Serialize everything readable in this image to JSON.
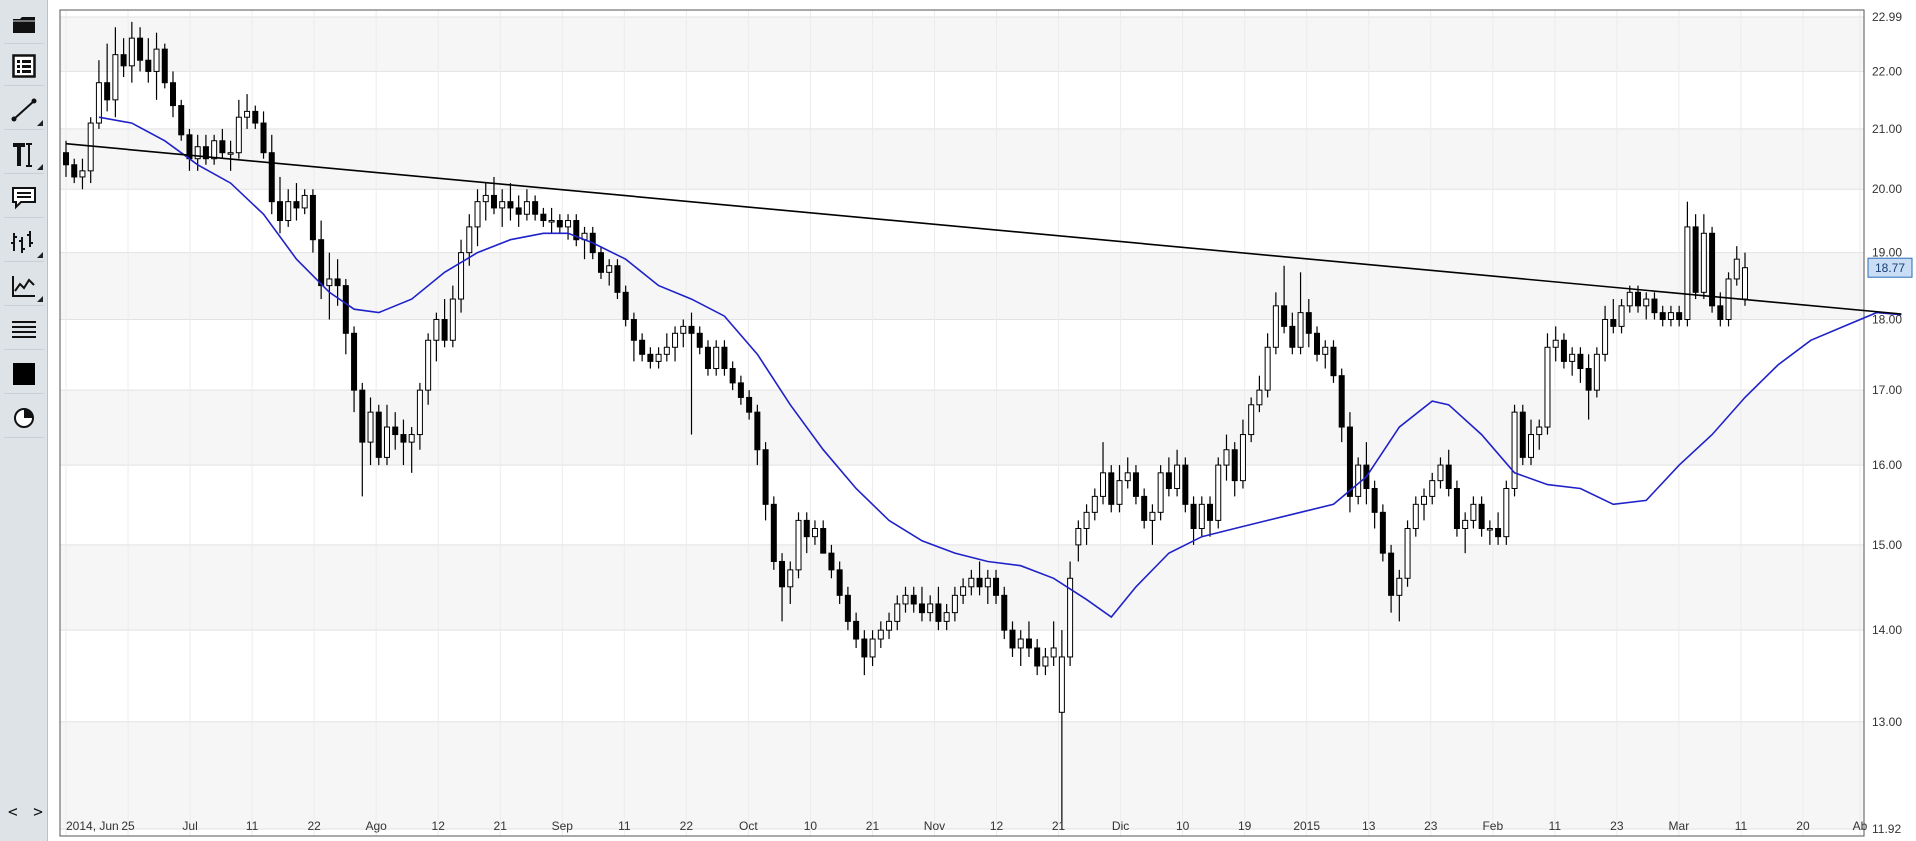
{
  "toolbar": {
    "tools": [
      {
        "name": "open-folder-icon"
      },
      {
        "name": "data-table-icon"
      },
      {
        "name": "trendline-icon"
      },
      {
        "name": "text-tool-icon"
      },
      {
        "name": "comment-icon"
      },
      {
        "name": "indicator-icon"
      },
      {
        "name": "chart-type-icon"
      },
      {
        "name": "lines-icon"
      },
      {
        "name": "color-icon"
      },
      {
        "name": "pie-icon"
      }
    ],
    "nav_label": "< >"
  },
  "chart_data": {
    "type": "candlestick",
    "y_scale": "log",
    "ylim": [
      11.92,
      22.99
    ],
    "ytick_labels": [
      "22.99",
      "22.00",
      "21.00",
      "20.00",
      "19.00",
      "18.00",
      "17.00",
      "16.00",
      "15.00",
      "14.00",
      "13.00",
      "11.92"
    ],
    "xtick_labels": [
      "2014, Jun",
      "25",
      "Jul",
      "11",
      "22",
      "Ago",
      "12",
      "21",
      "Sep",
      "11",
      "22",
      "Oct",
      "10",
      "21",
      "Nov",
      "12",
      "21",
      "Dic",
      "10",
      "19",
      "2015",
      "13",
      "23",
      "Feb",
      "11",
      "23",
      "Mar",
      "11",
      "20",
      "Ab"
    ],
    "last_price": "18.77",
    "colors": {
      "up_body": "#ffffff",
      "down_body": "#000000",
      "moving_average": "#1f22c8",
      "trendline": "#000000",
      "last_price_label_bg": "#c9ddf5"
    },
    "grid": "horizontal bands",
    "ohlc": [
      [
        20.6,
        20.8,
        20.2,
        20.4
      ],
      [
        20.4,
        20.5,
        20.1,
        20.2
      ],
      [
        20.2,
        20.5,
        20.0,
        20.3
      ],
      [
        20.3,
        21.2,
        20.1,
        21.1
      ],
      [
        21.1,
        22.2,
        21.0,
        21.8
      ],
      [
        21.8,
        22.5,
        21.3,
        21.5
      ],
      [
        21.5,
        22.8,
        21.2,
        22.3
      ],
      [
        22.3,
        22.6,
        21.9,
        22.1
      ],
      [
        22.1,
        22.9,
        21.8,
        22.6
      ],
      [
        22.6,
        22.8,
        22.0,
        22.2
      ],
      [
        22.2,
        22.6,
        21.8,
        22.0
      ],
      [
        22.0,
        22.7,
        21.5,
        22.4
      ],
      [
        22.4,
        22.5,
        21.7,
        21.8
      ],
      [
        21.8,
        22.0,
        21.2,
        21.4
      ],
      [
        21.4,
        21.5,
        20.8,
        20.9
      ],
      [
        20.9,
        21.0,
        20.3,
        20.5
      ],
      [
        20.5,
        20.9,
        20.3,
        20.7
      ],
      [
        20.7,
        20.9,
        20.4,
        20.5
      ],
      [
        20.5,
        20.9,
        20.4,
        20.8
      ],
      [
        20.8,
        21.0,
        20.5,
        20.6
      ],
      [
        20.6,
        20.8,
        20.3,
        20.6
      ],
      [
        20.6,
        21.5,
        20.5,
        21.2
      ],
      [
        21.2,
        21.6,
        21.0,
        21.3
      ],
      [
        21.3,
        21.4,
        21.0,
        21.1
      ],
      [
        21.1,
        21.3,
        20.5,
        20.6
      ],
      [
        20.6,
        20.9,
        19.6,
        19.8
      ],
      [
        19.8,
        20.2,
        19.3,
        19.5
      ],
      [
        19.5,
        20.0,
        19.4,
        19.8
      ],
      [
        19.8,
        20.1,
        19.5,
        19.7
      ],
      [
        19.7,
        20.0,
        19.6,
        19.9
      ],
      [
        19.9,
        20.0,
        19.0,
        19.2
      ],
      [
        19.2,
        19.5,
        18.3,
        18.5
      ],
      [
        18.5,
        19.0,
        18.0,
        18.6
      ],
      [
        18.6,
        18.9,
        18.2,
        18.5
      ],
      [
        18.5,
        18.6,
        17.5,
        17.8
      ],
      [
        17.8,
        17.9,
        16.7,
        17.0
      ],
      [
        17.0,
        17.1,
        15.6,
        16.3
      ],
      [
        16.3,
        16.9,
        16.0,
        16.7
      ],
      [
        16.7,
        16.8,
        16.0,
        16.1
      ],
      [
        16.1,
        16.8,
        16.0,
        16.5
      ],
      [
        16.5,
        16.7,
        16.2,
        16.4
      ],
      [
        16.4,
        16.6,
        16.0,
        16.3
      ],
      [
        16.3,
        16.5,
        15.9,
        16.4
      ],
      [
        16.4,
        17.1,
        16.2,
        17.0
      ],
      [
        17.0,
        17.8,
        16.8,
        17.7
      ],
      [
        17.7,
        18.1,
        17.4,
        18.0
      ],
      [
        18.0,
        18.3,
        17.6,
        17.7
      ],
      [
        17.7,
        18.5,
        17.6,
        18.3
      ],
      [
        18.3,
        19.2,
        18.1,
        19.0
      ],
      [
        19.0,
        19.6,
        18.8,
        19.4
      ],
      [
        19.4,
        20.0,
        19.1,
        19.8
      ],
      [
        19.8,
        20.1,
        19.5,
        19.9
      ],
      [
        19.9,
        20.2,
        19.6,
        19.7
      ],
      [
        19.7,
        20.0,
        19.4,
        19.8
      ],
      [
        19.8,
        20.1,
        19.5,
        19.7
      ],
      [
        19.7,
        19.9,
        19.4,
        19.6
      ],
      [
        19.6,
        20.0,
        19.5,
        19.8
      ],
      [
        19.8,
        19.9,
        19.5,
        19.6
      ],
      [
        19.6,
        19.7,
        19.4,
        19.5
      ],
      [
        19.5,
        19.7,
        19.3,
        19.5
      ],
      [
        19.5,
        19.6,
        19.3,
        19.4
      ],
      [
        19.4,
        19.6,
        19.2,
        19.5
      ],
      [
        19.5,
        19.6,
        19.1,
        19.2
      ],
      [
        19.2,
        19.4,
        18.9,
        19.3
      ],
      [
        19.3,
        19.4,
        18.9,
        19.0
      ],
      [
        19.0,
        19.1,
        18.6,
        18.7
      ],
      [
        18.7,
        18.9,
        18.5,
        18.8
      ],
      [
        18.8,
        18.9,
        18.3,
        18.4
      ],
      [
        18.4,
        18.5,
        17.9,
        18.0
      ],
      [
        18.0,
        18.1,
        17.4,
        17.7
      ],
      [
        17.7,
        17.8,
        17.4,
        17.5
      ],
      [
        17.5,
        17.6,
        17.3,
        17.4
      ],
      [
        17.4,
        17.6,
        17.3,
        17.5
      ],
      [
        17.5,
        17.8,
        17.4,
        17.6
      ],
      [
        17.6,
        17.9,
        17.4,
        17.8
      ],
      [
        17.8,
        18.0,
        17.6,
        17.9
      ],
      [
        17.9,
        18.1,
        16.4,
        17.8
      ],
      [
        17.8,
        17.9,
        17.5,
        17.6
      ],
      [
        17.6,
        17.7,
        17.2,
        17.3
      ],
      [
        17.3,
        17.7,
        17.2,
        17.6
      ],
      [
        17.6,
        17.7,
        17.2,
        17.3
      ],
      [
        17.3,
        17.4,
        17.0,
        17.1
      ],
      [
        17.1,
        17.2,
        16.8,
        16.9
      ],
      [
        16.9,
        17.0,
        16.6,
        16.7
      ],
      [
        16.7,
        16.8,
        16.0,
        16.2
      ],
      [
        16.2,
        16.3,
        15.3,
        15.5
      ],
      [
        15.5,
        15.6,
        14.7,
        14.8
      ],
      [
        14.8,
        14.9,
        14.1,
        14.5
      ],
      [
        14.5,
        14.8,
        14.3,
        14.7
      ],
      [
        14.7,
        15.4,
        14.6,
        15.3
      ],
      [
        15.3,
        15.4,
        14.9,
        15.1
      ],
      [
        15.1,
        15.3,
        15.0,
        15.2
      ],
      [
        15.2,
        15.3,
        14.9,
        14.9
      ],
      [
        14.9,
        15.0,
        14.6,
        14.7
      ],
      [
        14.7,
        14.8,
        14.3,
        14.4
      ],
      [
        14.4,
        14.5,
        14.0,
        14.1
      ],
      [
        14.1,
        14.2,
        13.8,
        13.9
      ],
      [
        13.9,
        14.0,
        13.5,
        13.7
      ],
      [
        13.7,
        14.0,
        13.6,
        13.9
      ],
      [
        13.9,
        14.1,
        13.8,
        14.0
      ],
      [
        14.0,
        14.2,
        13.9,
        14.1
      ],
      [
        14.1,
        14.4,
        14.0,
        14.3
      ],
      [
        14.3,
        14.5,
        14.2,
        14.4
      ],
      [
        14.4,
        14.5,
        14.2,
        14.3
      ],
      [
        14.3,
        14.5,
        14.1,
        14.2
      ],
      [
        14.2,
        14.4,
        14.1,
        14.3
      ],
      [
        14.3,
        14.5,
        14.0,
        14.1
      ],
      [
        14.1,
        14.3,
        14.0,
        14.2
      ],
      [
        14.2,
        14.5,
        14.1,
        14.4
      ],
      [
        14.4,
        14.6,
        14.3,
        14.5
      ],
      [
        14.5,
        14.7,
        14.4,
        14.6
      ],
      [
        14.6,
        14.8,
        14.4,
        14.5
      ],
      [
        14.5,
        14.7,
        14.3,
        14.6
      ],
      [
        14.6,
        14.7,
        14.3,
        14.4
      ],
      [
        14.4,
        14.5,
        13.9,
        14.0
      ],
      [
        14.0,
        14.1,
        13.7,
        13.8
      ],
      [
        13.8,
        14.0,
        13.6,
        13.9
      ],
      [
        13.9,
        14.1,
        13.7,
        13.8
      ],
      [
        13.8,
        13.9,
        13.5,
        13.6
      ],
      [
        13.6,
        13.8,
        13.5,
        13.7
      ],
      [
        13.7,
        14.1,
        13.6,
        13.8
      ],
      [
        13.1,
        14.0,
        11.92,
        13.7
      ],
      [
        13.7,
        14.8,
        13.6,
        14.6
      ],
      [
        15.0,
        15.3,
        14.8,
        15.2
      ],
      [
        15.2,
        15.5,
        15.0,
        15.4
      ],
      [
        15.4,
        15.7,
        15.3,
        15.6
      ],
      [
        15.6,
        16.3,
        15.5,
        15.9
      ],
      [
        15.9,
        16.0,
        15.4,
        15.5
      ],
      [
        15.5,
        16.0,
        15.4,
        15.8
      ],
      [
        15.8,
        16.1,
        15.7,
        15.9
      ],
      [
        15.9,
        16.0,
        15.5,
        15.6
      ],
      [
        15.6,
        15.7,
        15.2,
        15.3
      ],
      [
        15.3,
        15.5,
        15.0,
        15.4
      ],
      [
        15.4,
        16.0,
        15.3,
        15.9
      ],
      [
        15.9,
        16.1,
        15.6,
        15.7
      ],
      [
        15.7,
        16.2,
        15.6,
        16.0
      ],
      [
        16.0,
        16.1,
        15.4,
        15.5
      ],
      [
        15.5,
        15.6,
        15.0,
        15.2
      ],
      [
        15.2,
        15.6,
        15.1,
        15.5
      ],
      [
        15.5,
        15.6,
        15.1,
        15.3
      ],
      [
        15.3,
        16.1,
        15.2,
        16.0
      ],
      [
        16.0,
        16.4,
        15.8,
        16.2
      ],
      [
        16.2,
        16.3,
        15.6,
        15.8
      ],
      [
        15.8,
        16.6,
        15.7,
        16.4
      ],
      [
        16.4,
        16.9,
        16.3,
        16.8
      ],
      [
        16.8,
        17.2,
        16.7,
        17.0
      ],
      [
        17.0,
        17.8,
        16.9,
        17.6
      ],
      [
        17.6,
        18.4,
        17.5,
        18.2
      ],
      [
        18.2,
        18.8,
        17.8,
        17.9
      ],
      [
        17.9,
        18.1,
        17.5,
        17.6
      ],
      [
        17.6,
        18.7,
        17.5,
        18.1
      ],
      [
        18.1,
        18.3,
        17.6,
        17.8
      ],
      [
        17.8,
        17.9,
        17.4,
        17.5
      ],
      [
        17.5,
        17.7,
        17.3,
        17.6
      ],
      [
        17.6,
        17.7,
        17.1,
        17.2
      ],
      [
        17.2,
        17.3,
        16.3,
        16.5
      ],
      [
        16.5,
        16.7,
        15.4,
        15.6
      ],
      [
        15.6,
        16.1,
        15.5,
        16.0
      ],
      [
        16.0,
        16.3,
        15.5,
        15.7
      ],
      [
        15.7,
        15.8,
        15.2,
        15.4
      ],
      [
        15.4,
        15.5,
        14.8,
        14.9
      ],
      [
        14.9,
        15.0,
        14.2,
        14.4
      ],
      [
        14.4,
        14.7,
        14.1,
        14.6
      ],
      [
        14.6,
        15.3,
        14.5,
        15.2
      ],
      [
        15.2,
        15.6,
        15.1,
        15.5
      ],
      [
        15.5,
        15.7,
        15.3,
        15.6
      ],
      [
        15.6,
        15.9,
        15.5,
        15.8
      ],
      [
        15.8,
        16.1,
        15.7,
        16.0
      ],
      [
        16.0,
        16.2,
        15.6,
        15.7
      ],
      [
        15.7,
        15.8,
        15.1,
        15.2
      ],
      [
        15.2,
        15.4,
        14.9,
        15.3
      ],
      [
        15.3,
        15.6,
        15.2,
        15.5
      ],
      [
        15.5,
        15.6,
        15.1,
        15.2
      ],
      [
        15.2,
        15.3,
        15.0,
        15.2
      ],
      [
        15.2,
        15.4,
        15.0,
        15.1
      ],
      [
        15.1,
        15.8,
        15.0,
        15.7
      ],
      [
        15.7,
        16.8,
        15.6,
        16.7
      ],
      [
        16.7,
        16.8,
        16.0,
        16.1
      ],
      [
        16.1,
        16.6,
        16.0,
        16.4
      ],
      [
        16.4,
        16.6,
        16.2,
        16.5
      ],
      [
        16.5,
        17.8,
        16.4,
        17.6
      ],
      [
        17.6,
        17.9,
        17.4,
        17.7
      ],
      [
        17.7,
        17.8,
        17.3,
        17.4
      ],
      [
        17.4,
        17.6,
        17.2,
        17.5
      ],
      [
        17.5,
        17.6,
        17.1,
        17.3
      ],
      [
        17.3,
        17.5,
        16.6,
        17.0
      ],
      [
        17.0,
        17.6,
        16.9,
        17.5
      ],
      [
        17.5,
        18.2,
        17.4,
        18.0
      ],
      [
        18.0,
        18.3,
        17.8,
        17.9
      ],
      [
        17.9,
        18.3,
        17.8,
        18.2
      ],
      [
        18.2,
        18.5,
        18.1,
        18.4
      ],
      [
        18.4,
        18.5,
        18.1,
        18.2
      ],
      [
        18.2,
        18.4,
        18.0,
        18.3
      ],
      [
        18.3,
        18.4,
        18.0,
        18.1
      ],
      [
        18.1,
        18.2,
        17.9,
        18.0
      ],
      [
        18.0,
        18.2,
        17.9,
        18.1
      ],
      [
        18.1,
        18.2,
        17.9,
        18.0
      ],
      [
        18.0,
        19.8,
        17.9,
        19.4
      ],
      [
        19.4,
        19.6,
        18.3,
        18.4
      ],
      [
        18.4,
        19.6,
        18.3,
        19.3
      ],
      [
        19.3,
        19.4,
        18.1,
        18.2
      ],
      [
        18.2,
        18.4,
        17.9,
        18.0
      ],
      [
        18.0,
        18.7,
        17.9,
        18.6
      ],
      [
        18.6,
        19.1,
        18.5,
        18.9
      ],
      [
        18.3,
        19.0,
        18.2,
        18.77
      ]
    ],
    "moving_average": [
      [
        4,
        21.2
      ],
      [
        8,
        21.1
      ],
      [
        12,
        20.8
      ],
      [
        16,
        20.4
      ],
      [
        20,
        20.1
      ],
      [
        24,
        19.6
      ],
      [
        28,
        18.9
      ],
      [
        32,
        18.4
      ],
      [
        35,
        18.15
      ],
      [
        38,
        18.1
      ],
      [
        42,
        18.3
      ],
      [
        46,
        18.7
      ],
      [
        50,
        19.0
      ],
      [
        54,
        19.2
      ],
      [
        58,
        19.3
      ],
      [
        61,
        19.3
      ],
      [
        64,
        19.15
      ],
      [
        68,
        18.9
      ],
      [
        72,
        18.5
      ],
      [
        76,
        18.3
      ],
      [
        80,
        18.05
      ],
      [
        84,
        17.5
      ],
      [
        88,
        16.8
      ],
      [
        92,
        16.2
      ],
      [
        96,
        15.7
      ],
      [
        100,
        15.3
      ],
      [
        104,
        15.05
      ],
      [
        108,
        14.9
      ],
      [
        112,
        14.8
      ],
      [
        116,
        14.75
      ],
      [
        120,
        14.6
      ],
      [
        124,
        14.35
      ],
      [
        127,
        14.15
      ],
      [
        130,
        14.5
      ],
      [
        134,
        14.9
      ],
      [
        138,
        15.1
      ],
      [
        142,
        15.2
      ],
      [
        146,
        15.3
      ],
      [
        150,
        15.4
      ],
      [
        154,
        15.5
      ],
      [
        158,
        15.85
      ],
      [
        162,
        16.5
      ],
      [
        166,
        16.85
      ],
      [
        168,
        16.8
      ],
      [
        172,
        16.4
      ],
      [
        176,
        15.9
      ],
      [
        180,
        15.75
      ],
      [
        184,
        15.7
      ],
      [
        188,
        15.5
      ],
      [
        192,
        15.55
      ],
      [
        196,
        16.0
      ],
      [
        200,
        16.4
      ],
      [
        204,
        16.9
      ],
      [
        208,
        17.35
      ],
      [
        212,
        17.7
      ],
      [
        216,
        17.9
      ],
      [
        220,
        18.1
      ],
      [
        223,
        18.07
      ]
    ],
    "trendline": [
      [
        0,
        20.75
      ],
      [
        223,
        18.08
      ]
    ]
  }
}
